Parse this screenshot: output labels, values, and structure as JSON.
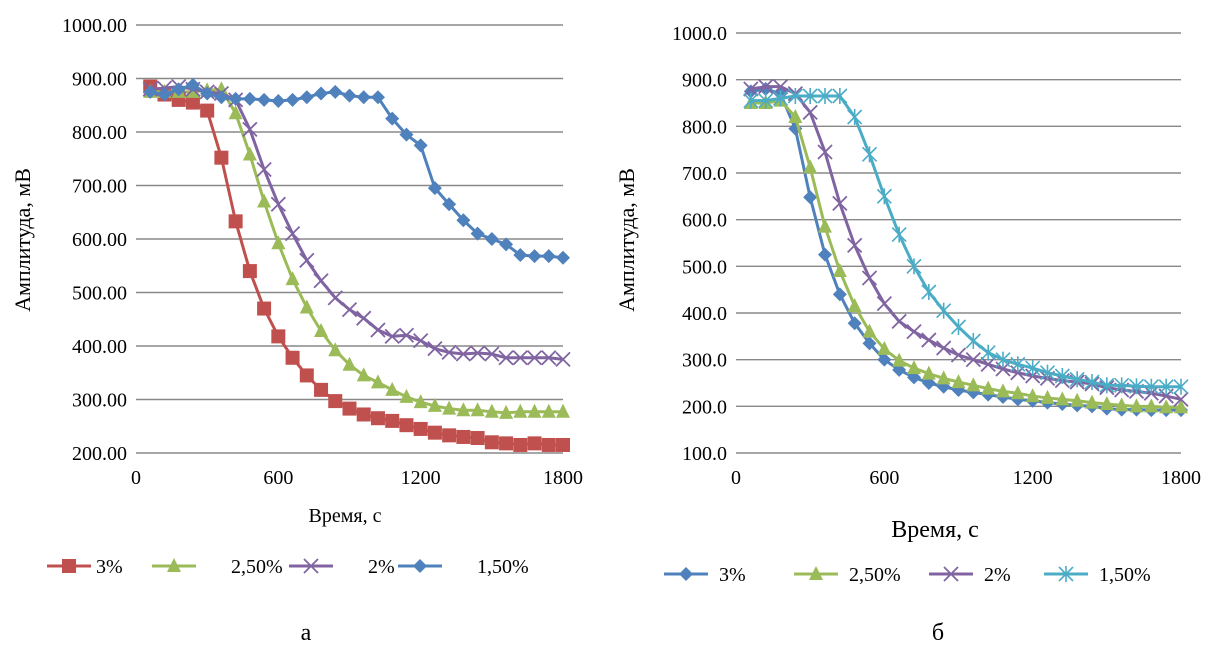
{
  "chart_data": [
    {
      "type": "line",
      "panel_label": "а",
      "xlabel": "Время, с",
      "ylabel": "Амплитуда, мВ",
      "xlim": [
        0,
        1800
      ],
      "ylim": [
        200,
        1000
      ],
      "x_ticks": [
        "0",
        "600",
        "1200",
        "1800"
      ],
      "y_ticks": [
        "200.00",
        "300.00",
        "400.00",
        "500.00",
        "600.00",
        "700.00",
        "800.00",
        "900.00",
        "1000.00"
      ],
      "grid": true,
      "legend_position": "bottom",
      "series": [
        {
          "name": "3%",
          "color": "#C0504D",
          "marker": "square",
          "x": [
            60,
            120,
            180,
            240,
            300,
            360,
            420,
            480,
            540,
            600,
            660,
            720,
            780,
            840,
            900,
            960,
            1020,
            1080,
            1140,
            1200,
            1260,
            1320,
            1380,
            1440,
            1500,
            1560,
            1620,
            1680,
            1740,
            1800
          ],
          "y": [
            885,
            870,
            860,
            855,
            840,
            752,
            633,
            540,
            470,
            418,
            378,
            345,
            318,
            297,
            283,
            272,
            265,
            260,
            252,
            245,
            238,
            233,
            230,
            228,
            220,
            218,
            215,
            218,
            215,
            215
          ]
        },
        {
          "name": "2,50%",
          "color": "#9BBB59",
          "marker": "triangle",
          "x": [
            60,
            120,
            180,
            240,
            300,
            360,
            420,
            480,
            540,
            600,
            660,
            720,
            780,
            840,
            900,
            960,
            1020,
            1080,
            1140,
            1200,
            1260,
            1320,
            1380,
            1440,
            1500,
            1560,
            1620,
            1680,
            1740,
            1800
          ],
          "y": [
            875,
            875,
            875,
            875,
            878,
            880,
            835,
            758,
            670,
            592,
            525,
            472,
            428,
            392,
            365,
            345,
            332,
            318,
            305,
            295,
            288,
            283,
            280,
            280,
            277,
            275,
            277,
            277,
            277,
            277
          ]
        },
        {
          "name": "2%",
          "color": "#8064A2",
          "marker": "x",
          "x": [
            60,
            120,
            180,
            240,
            300,
            360,
            420,
            480,
            540,
            600,
            660,
            720,
            780,
            840,
            900,
            960,
            1020,
            1080,
            1140,
            1200,
            1260,
            1320,
            1380,
            1440,
            1500,
            1560,
            1620,
            1680,
            1740,
            1800
          ],
          "y": [
            880,
            882,
            885,
            880,
            875,
            872,
            860,
            805,
            730,
            665,
            610,
            560,
            522,
            490,
            468,
            452,
            430,
            418,
            420,
            410,
            395,
            388,
            385,
            387,
            385,
            378,
            378,
            378,
            378,
            375
          ]
        },
        {
          "name": "1,50%",
          "color": "#4F81BD",
          "marker": "diamond",
          "x": [
            60,
            120,
            180,
            240,
            300,
            360,
            420,
            480,
            540,
            600,
            660,
            720,
            780,
            840,
            900,
            960,
            1020,
            1080,
            1140,
            1200,
            1260,
            1320,
            1380,
            1440,
            1500,
            1560,
            1620,
            1680,
            1740,
            1800
          ],
          "y": [
            875,
            870,
            880,
            888,
            872,
            865,
            862,
            862,
            860,
            858,
            860,
            865,
            872,
            875,
            868,
            865,
            865,
            825,
            795,
            775,
            695,
            665,
            635,
            610,
            600,
            590,
            570,
            568,
            568,
            565
          ]
        }
      ]
    },
    {
      "type": "line",
      "panel_label": "б",
      "xlabel": "Время, с",
      "ylabel": "Амплитуда, мВ",
      "xlim": [
        0,
        1800
      ],
      "ylim": [
        100,
        1000
      ],
      "x_ticks": [
        "0",
        "600",
        "1200",
        "1800"
      ],
      "y_ticks": [
        "100.0",
        "200.0",
        "300.0",
        "400.0",
        "500.0",
        "600.0",
        "700.0",
        "800.0",
        "900.0",
        "1000.0"
      ],
      "grid": true,
      "legend_position": "bottom",
      "series": [
        {
          "name": "3%",
          "color": "#4F81BD",
          "marker": "diamond",
          "x": [
            60,
            120,
            180,
            240,
            300,
            360,
            420,
            480,
            540,
            600,
            660,
            720,
            780,
            840,
            900,
            960,
            1020,
            1080,
            1140,
            1200,
            1260,
            1320,
            1380,
            1440,
            1500,
            1560,
            1620,
            1680,
            1740,
            1800
          ],
          "y": [
            875,
            880,
            870,
            795,
            648,
            525,
            440,
            378,
            335,
            300,
            278,
            262,
            250,
            242,
            235,
            230,
            225,
            220,
            215,
            212,
            208,
            205,
            202,
            200,
            195,
            193,
            193,
            192,
            192,
            192
          ]
        },
        {
          "name": "2,50%",
          "color": "#9BBB59",
          "marker": "triangle",
          "x": [
            60,
            120,
            180,
            240,
            300,
            360,
            420,
            480,
            540,
            600,
            660,
            720,
            780,
            840,
            900,
            960,
            1020,
            1080,
            1140,
            1200,
            1260,
            1320,
            1380,
            1440,
            1500,
            1560,
            1620,
            1680,
            1740,
            1800
          ],
          "y": [
            850,
            850,
            855,
            820,
            712,
            585,
            490,
            415,
            360,
            323,
            298,
            282,
            270,
            260,
            252,
            245,
            238,
            232,
            228,
            222,
            218,
            215,
            212,
            208,
            205,
            202,
            200,
            200,
            198,
            198
          ]
        },
        {
          "name": "2%",
          "color": "#8064A2",
          "marker": "x",
          "x": [
            60,
            120,
            180,
            240,
            300,
            360,
            420,
            480,
            540,
            600,
            660,
            720,
            780,
            840,
            900,
            960,
            1020,
            1080,
            1140,
            1200,
            1260,
            1320,
            1380,
            1440,
            1500,
            1560,
            1620,
            1680,
            1740,
            1800
          ],
          "y": [
            880,
            885,
            885,
            870,
            830,
            745,
            635,
            545,
            475,
            420,
            382,
            360,
            342,
            325,
            310,
            300,
            290,
            280,
            272,
            265,
            260,
            255,
            252,
            248,
            240,
            235,
            232,
            228,
            222,
            215
          ]
        },
        {
          "name": "1,50%",
          "color": "#4BACC6",
          "marker": "asterisk",
          "x": [
            60,
            120,
            180,
            240,
            300,
            360,
            420,
            480,
            540,
            600,
            660,
            720,
            780,
            840,
            900,
            960,
            1020,
            1080,
            1140,
            1200,
            1260,
            1320,
            1380,
            1440,
            1500,
            1560,
            1620,
            1680,
            1740,
            1800
          ],
          "y": [
            855,
            855,
            860,
            865,
            865,
            865,
            865,
            820,
            740,
            650,
            568,
            500,
            445,
            405,
            370,
            340,
            315,
            300,
            290,
            282,
            272,
            265,
            258,
            252,
            245,
            245,
            243,
            242,
            242,
            242
          ]
        }
      ]
    }
  ]
}
